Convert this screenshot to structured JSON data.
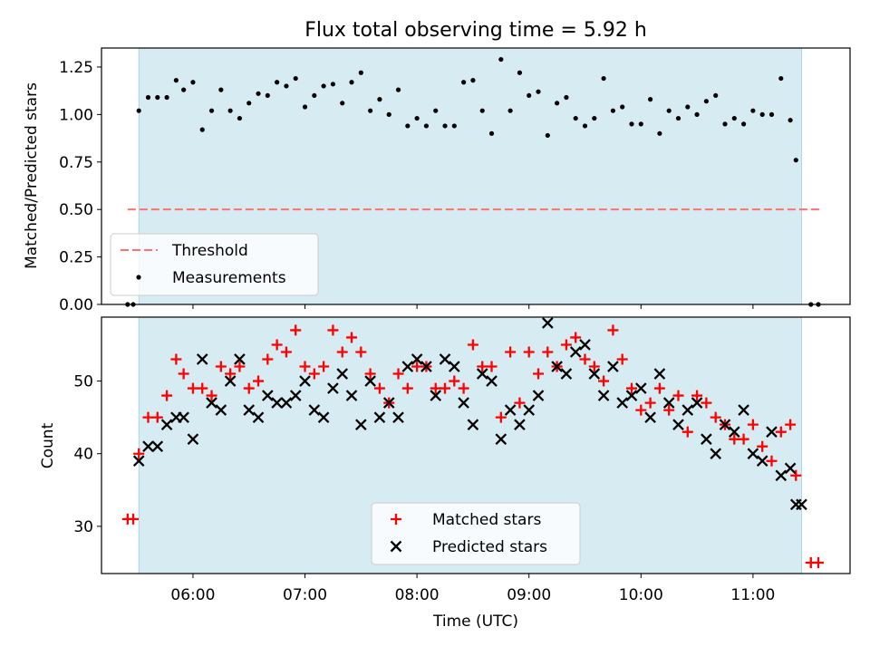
{
  "figure": {
    "title": "Flux total observing time = 5.92 h"
  },
  "chart_data": [
    {
      "type": "scatter",
      "panel": "top",
      "title": "Flux total observing time = 5.92 h",
      "xlabel": "",
      "ylabel": "Matched/Predicted stars",
      "x_range": [
        "05:11",
        "11:52"
      ],
      "ylim": [
        0,
        1.35
      ],
      "yticks": [
        "0.00",
        "0.25",
        "0.50",
        "0.75",
        "1.00",
        "1.25"
      ],
      "shaded_interval": [
        "05:31",
        "11:26"
      ],
      "threshold": {
        "name": "Threshold",
        "value": 0.5,
        "x_range": [
          "05:25",
          "11:36"
        ],
        "color": "#ff7070"
      },
      "legend": {
        "position": "lower-left",
        "entries": [
          "Threshold",
          "Measurements"
        ]
      },
      "series": [
        {
          "name": "Measurements",
          "color": "#000000",
          "x": [
            "05:25",
            "05:28",
            "05:31",
            "05:36",
            "05:41",
            "05:46",
            "05:51",
            "05:55",
            "06:00",
            "06:05",
            "06:10",
            "06:15",
            "06:20",
            "06:25",
            "06:30",
            "06:35",
            "06:40",
            "06:45",
            "06:50",
            "06:55",
            "07:00",
            "07:05",
            "07:10",
            "07:15",
            "07:20",
            "07:25",
            "07:30",
            "07:35",
            "07:40",
            "07:45",
            "07:50",
            "07:55",
            "08:00",
            "08:05",
            "08:10",
            "08:15",
            "08:20",
            "08:25",
            "08:30",
            "08:35",
            "08:40",
            "08:45",
            "08:50",
            "08:55",
            "09:00",
            "09:05",
            "09:10",
            "09:15",
            "09:20",
            "09:25",
            "09:30",
            "09:35",
            "09:40",
            "09:45",
            "09:50",
            "09:55",
            "10:00",
            "10:05",
            "10:10",
            "10:15",
            "10:20",
            "10:25",
            "10:30",
            "10:35",
            "10:40",
            "10:45",
            "10:50",
            "10:55",
            "11:00",
            "11:05",
            "11:10",
            "11:15",
            "11:20",
            "11:23",
            "11:31",
            "11:35"
          ],
          "y": [
            0.0,
            0.0,
            1.02,
            1.09,
            1.09,
            1.09,
            1.18,
            1.13,
            1.17,
            0.92,
            1.02,
            1.13,
            1.02,
            0.98,
            1.06,
            1.11,
            1.1,
            1.17,
            1.15,
            1.19,
            1.04,
            1.1,
            1.15,
            1.16,
            1.06,
            1.17,
            1.22,
            1.02,
            1.08,
            1.0,
            1.13,
            0.94,
            0.98,
            0.94,
            1.02,
            0.94,
            0.94,
            1.17,
            1.18,
            1.02,
            0.9,
            1.29,
            1.02,
            1.22,
            1.1,
            1.12,
            0.89,
            1.06,
            1.09,
            0.98,
            0.94,
            0.98,
            1.19,
            1.02,
            1.04,
            0.95,
            0.95,
            1.08,
            0.9,
            1.02,
            0.98,
            1.04,
            1.0,
            1.07,
            1.1,
            0.95,
            0.98,
            0.95,
            1.02,
            1.0,
            1.0,
            1.19,
            0.97,
            0.76,
            0.0,
            0.0
          ]
        }
      ]
    },
    {
      "type": "scatter",
      "panel": "bottom",
      "xlabel": "Time (UTC)",
      "ylabel": "Count",
      "x_range": [
        "05:11",
        "11:52"
      ],
      "ylim": [
        23.5,
        58.8
      ],
      "yticks": [
        "30",
        "40",
        "50"
      ],
      "xticks": [
        "06:00",
        "07:00",
        "08:00",
        "09:00",
        "10:00",
        "11:00"
      ],
      "shaded_interval": [
        "05:31",
        "11:26"
      ],
      "legend": {
        "position": "lower-center",
        "entries": [
          "Matched stars",
          "Predicted stars"
        ]
      },
      "series": [
        {
          "name": "Matched stars",
          "marker": "+",
          "color": "#ff0000",
          "x": [
            "05:25",
            "05:28",
            "05:31",
            "05:36",
            "05:41",
            "05:46",
            "05:51",
            "05:55",
            "06:00",
            "06:05",
            "06:10",
            "06:15",
            "06:20",
            "06:25",
            "06:30",
            "06:35",
            "06:40",
            "06:45",
            "06:50",
            "06:55",
            "07:00",
            "07:05",
            "07:10",
            "07:15",
            "07:20",
            "07:25",
            "07:30",
            "07:35",
            "07:40",
            "07:45",
            "07:50",
            "07:55",
            "08:00",
            "08:05",
            "08:10",
            "08:15",
            "08:20",
            "08:25",
            "08:30",
            "08:35",
            "08:40",
            "08:45",
            "08:50",
            "08:55",
            "09:00",
            "09:05",
            "09:10",
            "09:15",
            "09:20",
            "09:25",
            "09:30",
            "09:35",
            "09:40",
            "09:45",
            "09:50",
            "09:55",
            "10:00",
            "10:05",
            "10:10",
            "10:15",
            "10:20",
            "10:25",
            "10:30",
            "10:35",
            "10:40",
            "10:45",
            "10:50",
            "10:55",
            "11:00",
            "11:05",
            "11:10",
            "11:15",
            "11:20",
            "11:23",
            "11:31",
            "11:35"
          ],
          "y": [
            31,
            31,
            40,
            45,
            45,
            48,
            53,
            51,
            49,
            49,
            48,
            52,
            51,
            52,
            49,
            50,
            53,
            55,
            54,
            57,
            52,
            51,
            52,
            57,
            54,
            56,
            54,
            51,
            49,
            47,
            51,
            49,
            52,
            52,
            49,
            49,
            50,
            49,
            55,
            52,
            52,
            45,
            54,
            47,
            54,
            51,
            54,
            52,
            55,
            56,
            53,
            52,
            50,
            57,
            53,
            49,
            46,
            47,
            49,
            46,
            48,
            43,
            48,
            47,
            45,
            44,
            42,
            42,
            44,
            41,
            39,
            43,
            44,
            37,
            25,
            25
          ]
        },
        {
          "name": "Predicted stars",
          "marker": "x",
          "color": "#000000",
          "x": [
            "05:31",
            "05:36",
            "05:41",
            "05:46",
            "05:51",
            "05:55",
            "06:00",
            "06:05",
            "06:10",
            "06:15",
            "06:20",
            "06:25",
            "06:30",
            "06:35",
            "06:40",
            "06:45",
            "06:50",
            "06:55",
            "07:00",
            "07:05",
            "07:10",
            "07:15",
            "07:20",
            "07:25",
            "07:30",
            "07:35",
            "07:40",
            "07:45",
            "07:50",
            "07:55",
            "08:00",
            "08:05",
            "08:10",
            "08:15",
            "08:20",
            "08:25",
            "08:30",
            "08:35",
            "08:40",
            "08:45",
            "08:50",
            "08:55",
            "09:00",
            "09:05",
            "09:10",
            "09:15",
            "09:20",
            "09:25",
            "09:30",
            "09:35",
            "09:40",
            "09:45",
            "09:50",
            "09:55",
            "10:00",
            "10:05",
            "10:10",
            "10:15",
            "10:20",
            "10:25",
            "10:30",
            "10:35",
            "10:40",
            "10:45",
            "10:50",
            "10:55",
            "11:00",
            "11:05",
            "11:10",
            "11:15",
            "11:20",
            "11:23",
            "11:26"
          ],
          "y": [
            39,
            41,
            41,
            44,
            45,
            45,
            42,
            53,
            47,
            46,
            50,
            53,
            46,
            45,
            48,
            47,
            47,
            48,
            50,
            46,
            45,
            49,
            51,
            48,
            44,
            50,
            45,
            47,
            45,
            52,
            53,
            52,
            48,
            53,
            52,
            47,
            44,
            51,
            50,
            42,
            46,
            44,
            46,
            48,
            58,
            52,
            51,
            54,
            55,
            51,
            48,
            52,
            47,
            48,
            49,
            45,
            51,
            47,
            44,
            46,
            47,
            42,
            40,
            44,
            43,
            46,
            40,
            39,
            43,
            37,
            38,
            33,
            33
          ]
        }
      ]
    }
  ]
}
